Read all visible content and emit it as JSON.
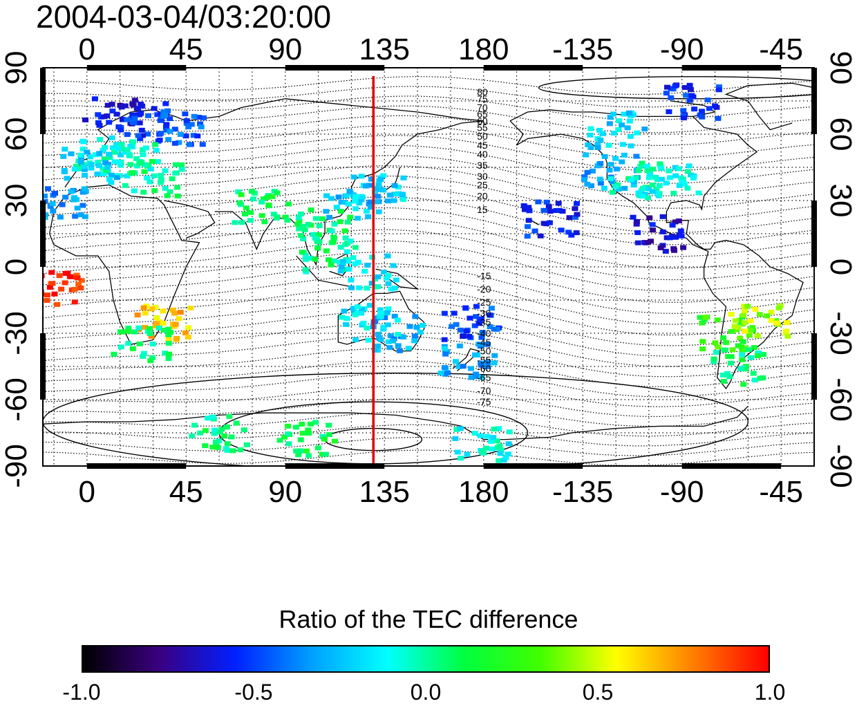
{
  "timestamp": "2004-03-04/03:20:00",
  "map": {
    "type": "geographic-scatter-map",
    "x_top_ticks": [
      "0",
      "45",
      "90",
      "135",
      "180",
      "-135",
      "-90",
      "-45"
    ],
    "x_bottom_ticks": [
      "0",
      "45",
      "90",
      "135",
      "180",
      "-135",
      "-90",
      "-45"
    ],
    "y_left_ticks": [
      "90",
      "60",
      "30",
      "0",
      "-30",
      "-60",
      "-90"
    ],
    "y_right_ticks": [
      "90",
      "60",
      "30",
      "0",
      "-30",
      "-60",
      "-90"
    ],
    "x_range_deg": [
      -20,
      330
    ],
    "y_range_deg": [
      -90,
      90
    ],
    "meridian_marker": {
      "lon": 130,
      "color": "#e00000"
    },
    "contour_labels": [
      {
        "text": "80",
        "lat": 79
      },
      {
        "text": "75",
        "lat": 76
      },
      {
        "text": "70",
        "lat": 72
      },
      {
        "text": "65",
        "lat": 69
      },
      {
        "text": "60",
        "lat": 66
      },
      {
        "text": "55",
        "lat": 63
      },
      {
        "text": "50",
        "lat": 59
      },
      {
        "text": "45",
        "lat": 55
      },
      {
        "text": "40",
        "lat": 51
      },
      {
        "text": "35",
        "lat": 46
      },
      {
        "text": "30",
        "lat": 41
      },
      {
        "text": "25",
        "lat": 37
      },
      {
        "text": "20",
        "lat": 32
      },
      {
        "text": "15",
        "lat": 26
      },
      {
        "text": "-15",
        "lat": -4
      },
      {
        "text": "-20",
        "lat": -10
      },
      {
        "text": "-25",
        "lat": -16
      },
      {
        "text": "-30",
        "lat": -21
      },
      {
        "text": "-35",
        "lat": -25
      },
      {
        "text": "-40",
        "lat": -30
      },
      {
        "text": "-45",
        "lat": -34
      },
      {
        "text": "-50",
        "lat": -38
      },
      {
        "text": "-55",
        "lat": -42
      },
      {
        "text": "-60",
        "lat": -46
      },
      {
        "text": "-65",
        "lat": -50
      },
      {
        "text": "-70",
        "lat": -56
      },
      {
        "text": "-75",
        "lat": -61
      }
    ],
    "data_clusters": [
      {
        "lon": 12,
        "lat": 70,
        "value": -0.62
      },
      {
        "lon": 28,
        "lat": 66,
        "value": -0.55
      },
      {
        "lon": 40,
        "lat": 63,
        "value": -0.45
      },
      {
        "lon": 8,
        "lat": 52,
        "value": -0.1
      },
      {
        "lon": 20,
        "lat": 48,
        "value": -0.05
      },
      {
        "lon": 2,
        "lat": 46,
        "value": -0.2
      },
      {
        "lon": 30,
        "lat": 40,
        "value": 0.0
      },
      {
        "lon": -12,
        "lat": 30,
        "value": -0.35
      },
      {
        "lon": 80,
        "lat": 28,
        "value": 0.1
      },
      {
        "lon": 108,
        "lat": 18,
        "value": 0.05
      },
      {
        "lon": 120,
        "lat": 30,
        "value": -0.25
      },
      {
        "lon": 132,
        "lat": 34,
        "value": -0.2
      },
      {
        "lon": 110,
        "lat": 5,
        "value": 0.02
      },
      {
        "lon": 128,
        "lat": -2,
        "value": -0.15
      },
      {
        "lon": 140,
        "lat": -30,
        "value": -0.3
      },
      {
        "lon": 128,
        "lat": -25,
        "value": -0.15
      },
      {
        "lon": 175,
        "lat": -25,
        "value": -0.5
      },
      {
        "lon": 172,
        "lat": -42,
        "value": -0.3
      },
      {
        "lon": 210,
        "lat": 22,
        "value": -0.55
      },
      {
        "lon": 238,
        "lat": 43,
        "value": -0.3
      },
      {
        "lon": 250,
        "lat": 40,
        "value": -0.05
      },
      {
        "lon": 265,
        "lat": 38,
        "value": -0.1
      },
      {
        "lon": 260,
        "lat": 15,
        "value": -0.65
      },
      {
        "lon": 240,
        "lat": 62,
        "value": -0.2
      },
      {
        "lon": 275,
        "lat": 75,
        "value": -0.55
      },
      {
        "lon": 290,
        "lat": -30,
        "value": 0.25
      },
      {
        "lon": 305,
        "lat": -25,
        "value": 0.45
      },
      {
        "lon": 295,
        "lat": -45,
        "value": 0.05
      },
      {
        "lon": -15,
        "lat": -10,
        "value": 0.95
      },
      {
        "lon": 35,
        "lat": -25,
        "value": 0.65
      },
      {
        "lon": 25,
        "lat": -35,
        "value": 0.05
      },
      {
        "lon": 60,
        "lat": -75,
        "value": 0.05
      },
      {
        "lon": 100,
        "lat": -78,
        "value": 0.1
      },
      {
        "lon": 180,
        "lat": -80,
        "value": -0.1
      }
    ]
  },
  "colorbar": {
    "title": "Ratio of the TEC difference",
    "ticks": [
      "-1.0",
      "-0.5",
      "0.0",
      "0.5",
      "1.0"
    ],
    "range": [
      -1.0,
      1.0
    ],
    "stops": [
      "#000000",
      "#3a0080",
      "#0020ff",
      "#00a0ff",
      "#00ffff",
      "#00ff40",
      "#40ff00",
      "#ffff00",
      "#ff8000",
      "#ff0000"
    ]
  }
}
